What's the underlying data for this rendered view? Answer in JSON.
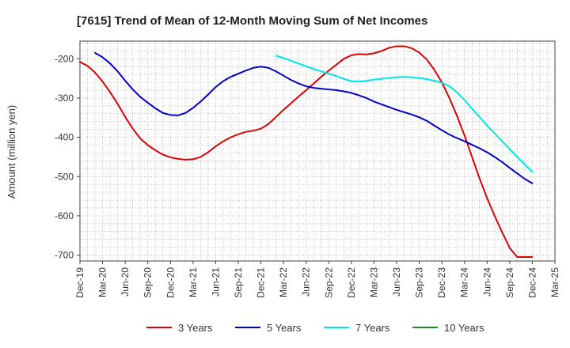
{
  "chart_data": {
    "type": "line",
    "title": "[7615]  Trend of Mean of 12-Month Moving Sum of Net Incomes",
    "xlabel": "",
    "ylabel": "Amount (million yen)",
    "ylim": [
      -715,
      -155
    ],
    "yticks": [
      -200,
      -300,
      -400,
      -500,
      -600,
      -700
    ],
    "xticks": [
      "Dec-19",
      "Mar-20",
      "Jun-20",
      "Sep-20",
      "Dec-20",
      "Mar-21",
      "Jun-21",
      "Sep-21",
      "Dec-21",
      "Mar-22",
      "Jun-22",
      "Sep-22",
      "Dec-22",
      "Mar-23",
      "Jun-23",
      "Sep-23",
      "Dec-23",
      "Mar-24",
      "Jun-24",
      "Sep-24",
      "Dec-24",
      "Mar-25"
    ],
    "grid": true,
    "legend_position": "bottom",
    "series": [
      {
        "name": "3 Years",
        "color": "#dd0000",
        "x": [
          "Dec-19",
          "Jan-20",
          "Feb-20",
          "Mar-20",
          "Apr-20",
          "May-20",
          "Jun-20",
          "Jul-20",
          "Aug-20",
          "Sep-20",
          "Oct-20",
          "Nov-20",
          "Dec-20",
          "Jan-21",
          "Feb-21",
          "Mar-21",
          "Apr-21",
          "May-21",
          "Jun-21",
          "Jul-21",
          "Aug-21",
          "Sep-21",
          "Oct-21",
          "Nov-21",
          "Dec-21",
          "Jan-22",
          "Feb-22",
          "Mar-22",
          "Apr-22",
          "May-22",
          "Jun-22",
          "Jul-22",
          "Aug-22",
          "Sep-22",
          "Oct-22",
          "Nov-22",
          "Dec-22",
          "Jan-23",
          "Feb-23",
          "Mar-23",
          "Apr-23",
          "May-23",
          "Jun-23",
          "Jul-23",
          "Aug-23",
          "Sep-23",
          "Oct-23",
          "Nov-23",
          "Dec-23",
          "Jan-24",
          "Feb-24",
          "Mar-24",
          "Apr-24",
          "May-24",
          "Jun-24",
          "Jul-24",
          "Aug-24",
          "Sep-24",
          "Oct-24",
          "Nov-24",
          "Dec-24"
        ],
        "values": [
          -208,
          -218,
          -235,
          -258,
          -285,
          -315,
          -348,
          -378,
          -403,
          -420,
          -433,
          -444,
          -451,
          -455,
          -457,
          -456,
          -450,
          -438,
          -423,
          -410,
          -400,
          -392,
          -386,
          -383,
          -378,
          -366,
          -348,
          -330,
          -313,
          -296,
          -280,
          -263,
          -246,
          -230,
          -215,
          -200,
          -191,
          -188,
          -189,
          -186,
          -180,
          -172,
          -168,
          -168,
          -173,
          -184,
          -202,
          -228,
          -260,
          -300,
          -345,
          -395,
          -450,
          -505,
          -555,
          -600,
          -642,
          -682,
          -705,
          -705,
          -705
        ],
        "x_end": "Dec-24"
      },
      {
        "name": "5 Years",
        "color": "#0000cc",
        "x": [
          "Feb-20",
          "Mar-20",
          "Apr-20",
          "May-20",
          "Jun-20",
          "Jul-20",
          "Aug-20",
          "Sep-20",
          "Oct-20",
          "Nov-20",
          "Dec-20",
          "Jan-21",
          "Feb-21",
          "Mar-21",
          "Apr-21",
          "May-21",
          "Jun-21",
          "Jul-21",
          "Aug-21",
          "Sep-21",
          "Oct-21",
          "Nov-21",
          "Dec-21",
          "Jan-22",
          "Feb-22",
          "Mar-22",
          "Apr-22",
          "May-22",
          "Jun-22",
          "Jul-22",
          "Aug-22",
          "Sep-22",
          "Oct-22",
          "Nov-22",
          "Dec-22",
          "Jan-23",
          "Feb-23",
          "Mar-23",
          "Apr-23",
          "May-23",
          "Jun-23",
          "Jul-23",
          "Aug-23",
          "Sep-23",
          "Oct-23",
          "Nov-23",
          "Dec-23",
          "Jan-24",
          "Feb-24",
          "Mar-24",
          "Apr-24",
          "May-24",
          "Jun-24",
          "Jul-24",
          "Aug-24",
          "Sep-24",
          "Oct-24",
          "Nov-24",
          "Dec-24"
        ],
        "values": [
          -185,
          -196,
          -212,
          -232,
          -256,
          -278,
          -297,
          -312,
          -326,
          -338,
          -343,
          -344,
          -338,
          -325,
          -309,
          -291,
          -272,
          -257,
          -246,
          -238,
          -230,
          -223,
          -220,
          -223,
          -232,
          -243,
          -254,
          -263,
          -270,
          -274,
          -276,
          -278,
          -280,
          -283,
          -287,
          -293,
          -300,
          -309,
          -316,
          -323,
          -330,
          -336,
          -342,
          -349,
          -358,
          -370,
          -382,
          -393,
          -402,
          -410,
          -419,
          -428,
          -438,
          -450,
          -463,
          -478,
          -492,
          -506,
          -517
        ]
      },
      {
        "name": "7 Years",
        "color": "#00e5e5",
        "x": [
          "Feb-22",
          "Mar-22",
          "Apr-22",
          "May-22",
          "Jun-22",
          "Jul-22",
          "Aug-22",
          "Sep-22",
          "Oct-22",
          "Nov-22",
          "Dec-22",
          "Jan-23",
          "Feb-23",
          "Mar-23",
          "Apr-23",
          "May-23",
          "Jun-23",
          "Jul-23",
          "Aug-23",
          "Sep-23",
          "Oct-23",
          "Nov-23",
          "Dec-23",
          "Jan-24",
          "Feb-24",
          "Mar-24",
          "Apr-24",
          "May-24",
          "Jun-24",
          "Jul-24",
          "Aug-24",
          "Sep-24",
          "Oct-24",
          "Nov-24",
          "Dec-24"
        ],
        "values": [
          -192,
          -198,
          -205,
          -212,
          -219,
          -226,
          -232,
          -238,
          -244,
          -251,
          -257,
          -258,
          -256,
          -253,
          -251,
          -249,
          -247,
          -246,
          -247,
          -249,
          -252,
          -256,
          -261,
          -270,
          -285,
          -305,
          -327,
          -348,
          -370,
          -390,
          -410,
          -430,
          -450,
          -469,
          -488
        ]
      },
      {
        "name": "10 Years",
        "color": "#228822",
        "x": [],
        "values": []
      }
    ]
  }
}
